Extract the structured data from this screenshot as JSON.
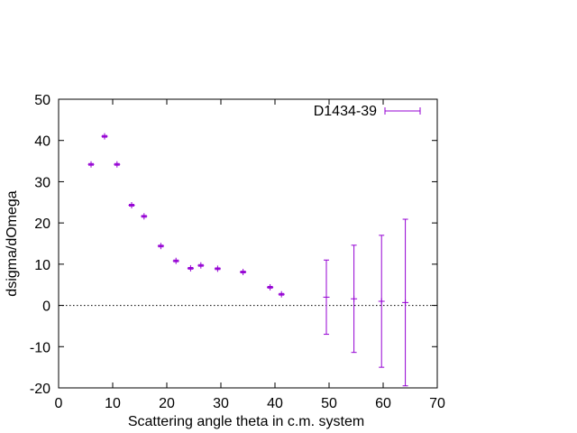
{
  "chart_data": {
    "type": "scatter",
    "title": "",
    "xlabel": "Scattering angle theta in c.m. system",
    "ylabel": "dsigma/dOmega",
    "xlim": [
      0,
      70
    ],
    "ylim": [
      -20,
      50
    ],
    "xticks": [
      "0",
      "10",
      "20",
      "30",
      "40",
      "50",
      "60",
      "70"
    ],
    "yticks": [
      "-20",
      "-10",
      "0",
      "10",
      "20",
      "30",
      "40",
      "50"
    ],
    "grid": false,
    "zero_line": true,
    "legend_position": "top-right",
    "series": [
      {
        "name": "D1434-39",
        "color": "#9400d3",
        "points": [
          {
            "x": 6.0,
            "y": 34.2,
            "err": 0.2
          },
          {
            "x": 8.5,
            "y": 41.0,
            "err": 0.2
          },
          {
            "x": 10.8,
            "y": 34.2,
            "err": 0.2
          },
          {
            "x": 13.5,
            "y": 24.3,
            "err": 0.2
          },
          {
            "x": 15.8,
            "y": 21.6,
            "err": 0.2
          },
          {
            "x": 18.9,
            "y": 14.4,
            "err": 0.2
          },
          {
            "x": 21.7,
            "y": 10.8,
            "err": 0.2
          },
          {
            "x": 24.4,
            "y": 9.0,
            "err": 0.2
          },
          {
            "x": 26.3,
            "y": 9.7,
            "err": 0.2
          },
          {
            "x": 29.4,
            "y": 8.9,
            "err": 0.2
          },
          {
            "x": 34.1,
            "y": 8.1,
            "err": 0.2
          },
          {
            "x": 39.1,
            "y": 4.4,
            "err": 0.2
          },
          {
            "x": 41.2,
            "y": 2.7,
            "err": 0.2
          },
          {
            "x": 49.5,
            "y": 2.0,
            "err": 9.0
          },
          {
            "x": 54.6,
            "y": 1.6,
            "err": 13.0
          },
          {
            "x": 59.7,
            "y": 1.0,
            "err": 16.0
          },
          {
            "x": 64.1,
            "y": 0.7,
            "err": 20.2
          }
        ]
      }
    ]
  }
}
